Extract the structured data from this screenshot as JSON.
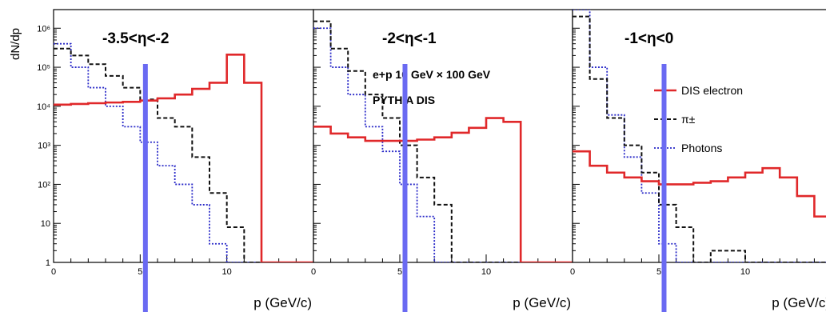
{
  "chart_data": {
    "type": "line",
    "ylabel": "dN/dp",
    "yscale": "log",
    "ylim": [
      1,
      3000000
    ],
    "xlim": [
      0,
      15
    ],
    "yticks": [
      "1",
      "10",
      "10²",
      "10³",
      "10⁴",
      "10⁵",
      "10⁶"
    ],
    "annotation": [
      "e+p 10 GeV × 100 GeV",
      "PYTHIA DIS"
    ],
    "legend": {
      "placement": "top-right of third panel",
      "entries": [
        "DIS electron",
        "π±",
        "Photons"
      ]
    },
    "colors": {
      "dis_electron": "#e0282a",
      "pion": "#111111",
      "photons": "#2a2ac8",
      "cut_marker": "#6a6af2"
    },
    "marker_x": 5.3,
    "panels": [
      {
        "title": "-3.5<η<-2",
        "xlabel": "p (GeV/c)",
        "xticks": [
          "0",
          "5",
          "10"
        ],
        "series": [
          {
            "name": "DIS electron",
            "bin_edges": [
              0,
              1,
              2,
              3,
              4,
              5,
              6,
              7,
              8,
              9,
              10,
              11,
              12,
              13,
              14,
              15
            ],
            "values": [
              11000,
              11500,
              12000,
              12500,
              13000,
              14000,
              16000,
              20000,
              28000,
              40000,
              210000,
              40000,
              1,
              1,
              1
            ]
          },
          {
            "name": "π±",
            "bin_edges": [
              0,
              1,
              2,
              3,
              4,
              5,
              6,
              7,
              8,
              9,
              10,
              11,
              12,
              13,
              14,
              15
            ],
            "values": [
              300000,
              200000,
              120000,
              60000,
              30000,
              15000,
              5000,
              3000,
              500,
              60,
              8,
              1,
              1,
              1,
              1
            ]
          },
          {
            "name": "Photons",
            "bin_edges": [
              0,
              1,
              2,
              3,
              4,
              5,
              6,
              7,
              8,
              9,
              10,
              11,
              12,
              13,
              14,
              15
            ],
            "values": [
              400000,
              100000,
              30000,
              10000,
              3000,
              1200,
              300,
              100,
              30,
              3,
              1,
              1,
              1,
              1,
              1
            ]
          }
        ]
      },
      {
        "title": "-2<η<-1",
        "xlabel": "p (GeV/c)",
        "xticks": [
          "0",
          "5",
          "10"
        ],
        "series": [
          {
            "name": "DIS electron",
            "bin_edges": [
              0,
              1,
              2,
              3,
              4,
              5,
              6,
              7,
              8,
              9,
              10,
              11,
              12,
              13,
              14,
              15
            ],
            "values": [
              3000,
              2000,
              1600,
              1300,
              1300,
              1300,
              1400,
              1600,
              2100,
              2800,
              5000,
              4000,
              1,
              1,
              1
            ]
          },
          {
            "name": "π±",
            "bin_edges": [
              0,
              1,
              2,
              3,
              4,
              5,
              6,
              7,
              8,
              9,
              10,
              11,
              12,
              13,
              14,
              15
            ],
            "values": [
              1500000,
              300000,
              80000,
              20000,
              5000,
              1000,
              150,
              30,
              1,
              1,
              1,
              1,
              1,
              1,
              1
            ]
          },
          {
            "name": "Photons",
            "bin_edges": [
              0,
              1,
              2,
              3,
              4,
              5,
              6,
              7,
              8,
              9,
              10,
              11,
              12,
              13,
              14,
              15
            ],
            "values": [
              1000000,
              100000,
              20000,
              3000,
              700,
              100,
              15,
              1,
              1,
              1,
              1,
              1,
              1,
              1,
              1
            ]
          }
        ]
      },
      {
        "title": "-1<η<0",
        "xlabel": "p (GeV/c)",
        "xticks": [
          "0",
          "5",
          "10"
        ],
        "series": [
          {
            "name": "DIS electron",
            "bin_edges": [
              0,
              1,
              2,
              3,
              4,
              5,
              6,
              7,
              8,
              9,
              10,
              11,
              12,
              13,
              14,
              15
            ],
            "values": [
              700,
              300,
              200,
              150,
              120,
              100,
              100,
              110,
              120,
              150,
              200,
              260,
              150,
              50,
              15
            ]
          },
          {
            "name": "π±",
            "bin_edges": [
              0,
              1,
              2,
              3,
              4,
              5,
              6,
              7,
              8,
              9,
              10,
              11,
              12,
              13,
              14,
              15
            ],
            "values": [
              2000000,
              50000,
              5000,
              1000,
              200,
              30,
              8,
              1,
              2,
              2,
              1,
              1,
              1,
              1,
              1
            ]
          },
          {
            "name": "Photons",
            "bin_edges": [
              0,
              1,
              2,
              3,
              4,
              5,
              6,
              7,
              8,
              9,
              10,
              11,
              12,
              13,
              14,
              15
            ],
            "values": [
              3000000,
              100000,
              6000,
              500,
              60,
              3,
              1,
              1,
              1,
              1,
              1,
              1,
              1,
              1,
              1
            ]
          }
        ]
      }
    ]
  }
}
